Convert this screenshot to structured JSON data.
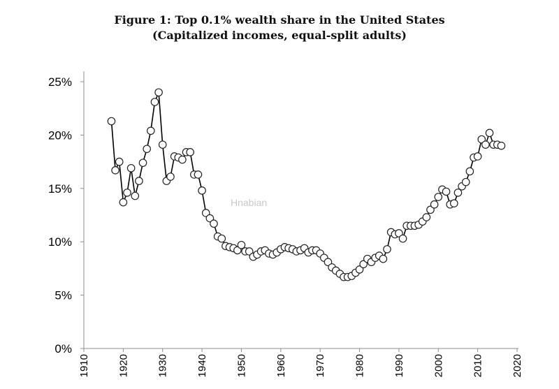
{
  "chart_data": {
    "type": "line",
    "title": "Figure 1: Top 0.1% wealth share in the United States",
    "subtitle": "(Capitalized incomes, equal-split adults)",
    "xlabel": "",
    "ylabel": "",
    "xlim": [
      1910,
      2020
    ],
    "ylim": [
      0,
      25
    ],
    "x_ticks": [
      "1910",
      "1920",
      "1930",
      "1940",
      "1950",
      "1960",
      "1970",
      "1980",
      "1990",
      "2000",
      "2010",
      "2020"
    ],
    "y_ticks": [
      "0%",
      "5%",
      "10%",
      "15%",
      "20%",
      "25%"
    ],
    "grid": false,
    "legend": "none",
    "marker": "open-circle",
    "line_color": "#000000",
    "watermark": "Hnabian",
    "series": [
      {
        "x": [
          1917,
          1918,
          1919,
          1920,
          1921,
          1922,
          1923,
          1924,
          1925,
          1926,
          1927,
          1928,
          1929,
          1930,
          1931,
          1932,
          1933,
          1934,
          1935,
          1936,
          1937,
          1938,
          1939,
          1940,
          1941,
          1942,
          1943,
          1944,
          1945,
          1946,
          1947,
          1948,
          1949,
          1950,
          1951,
          1952,
          1953,
          1954,
          1955,
          1956,
          1957,
          1958,
          1959,
          1960,
          1961,
          1962,
          1963,
          1964,
          1965,
          1966,
          1967,
          1968,
          1969,
          1970,
          1971,
          1972,
          1973,
          1974,
          1975,
          1976,
          1977,
          1978,
          1979,
          1980,
          1981,
          1982,
          1983,
          1984,
          1985,
          1986,
          1987,
          1988,
          1989,
          1990,
          1991,
          1992,
          1993,
          1994,
          1995,
          1996,
          1997,
          1998,
          1999,
          2000,
          2001,
          2002,
          2003,
          2004,
          2005,
          2006,
          2007,
          2008,
          2009,
          2010,
          2011,
          2012,
          2013,
          2014,
          2015,
          2016
        ],
        "values": [
          21.3,
          16.7,
          17.5,
          13.7,
          14.6,
          16.9,
          14.3,
          15.7,
          17.4,
          18.7,
          20.4,
          23.1,
          24.0,
          19.1,
          15.7,
          16.1,
          18.0,
          17.9,
          17.7,
          18.4,
          18.4,
          16.3,
          16.3,
          14.8,
          12.7,
          12.2,
          11.7,
          10.5,
          10.3,
          9.6,
          9.5,
          9.4,
          9.2,
          9.7,
          9.1,
          9.1,
          8.6,
          8.8,
          9.1,
          9.2,
          8.9,
          8.8,
          9.0,
          9.3,
          9.5,
          9.4,
          9.3,
          9.1,
          9.2,
          9.4,
          9.0,
          9.2,
          9.2,
          8.9,
          8.5,
          8.1,
          7.6,
          7.3,
          7.0,
          6.7,
          6.7,
          6.8,
          7.1,
          7.4,
          7.9,
          8.4,
          8.1,
          8.5,
          8.7,
          8.4,
          9.3,
          10.9,
          10.7,
          10.8,
          10.3,
          11.5,
          11.5,
          11.5,
          11.6,
          11.9,
          12.3,
          13.0,
          13.5,
          14.2,
          14.9,
          14.7,
          13.5,
          13.6,
          14.6,
          15.2,
          15.6,
          16.6,
          17.9,
          18.0,
          19.6,
          19.1,
          20.2,
          19.1,
          19.1,
          19.0
        ]
      }
    ]
  }
}
